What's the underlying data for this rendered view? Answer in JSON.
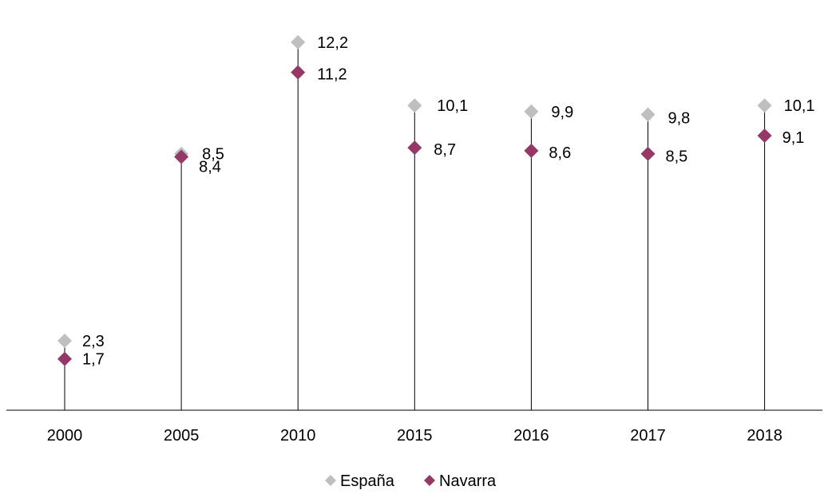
{
  "chart_data": {
    "type": "scatter",
    "title": "",
    "xlabel": "",
    "ylabel": "",
    "categories": [
      "2000",
      "2005",
      "2010",
      "2015",
      "2016",
      "2017",
      "2018"
    ],
    "ylim": [
      0,
      13
    ],
    "grid": false,
    "legend_position": "bottom",
    "series": [
      {
        "name": "España",
        "color": "#bfbfbf",
        "marker": "diamond",
        "values": [
          2.3,
          8.5,
          12.2,
          10.1,
          9.9,
          9.8,
          10.1
        ],
        "labels": [
          "2,3",
          "8,5",
          "12,2",
          "10,1",
          "9,9",
          "9,8",
          "10,1"
        ]
      },
      {
        "name": "Navarra",
        "color": "#953865",
        "marker": "diamond",
        "values": [
          1.7,
          8.4,
          11.2,
          8.7,
          8.6,
          8.5,
          9.1
        ],
        "labels": [
          "1,7",
          "8,4",
          "11,2",
          "8,7",
          "8,6",
          "8,5",
          "9,1"
        ]
      }
    ]
  }
}
